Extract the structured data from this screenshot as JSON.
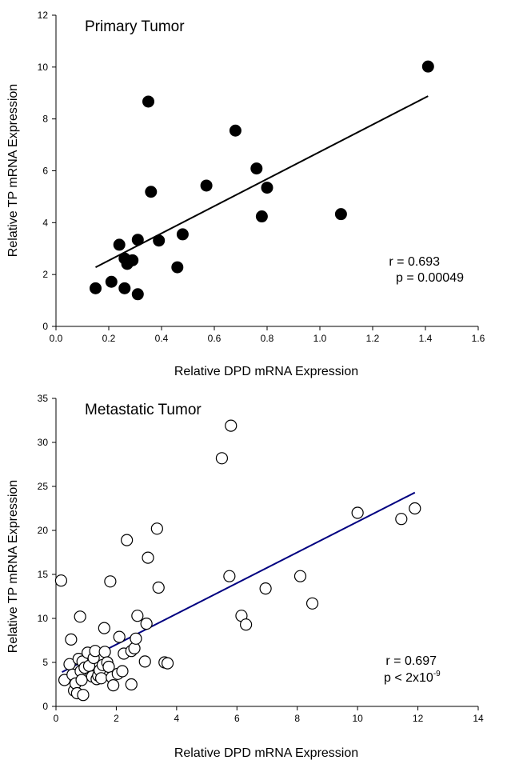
{
  "chart_data": [
    {
      "type": "scatter",
      "title": "Primary Tumor",
      "xlabel": "Relative DPD mRNA Expression",
      "ylabel": "Relative TP mRNA Expression",
      "xlim": [
        0,
        1.6
      ],
      "ylim": [
        0,
        12
      ],
      "xticks": [
        "0.0",
        "0.2",
        "0.4",
        "0.6",
        "0.8",
        "1.0",
        "1.2",
        "1.4",
        "1.6"
      ],
      "yticks": [
        "0",
        "2",
        "4",
        "6",
        "8",
        "10",
        "12"
      ],
      "marker": "filled-circle",
      "marker_color": "#000000",
      "trendline": {
        "x": [
          0.15,
          1.41
        ],
        "y": [
          2.28,
          8.88
        ],
        "color": "#000000"
      },
      "annotations": {
        "r_text": "r = 0.693",
        "p_text": "p = 0.00049",
        "p_superscript": ""
      },
      "points": [
        {
          "x": 0.15,
          "y": 1.47
        },
        {
          "x": 0.21,
          "y": 1.72
        },
        {
          "x": 0.24,
          "y": 3.15
        },
        {
          "x": 0.26,
          "y": 2.62
        },
        {
          "x": 0.26,
          "y": 1.47
        },
        {
          "x": 0.27,
          "y": 2.41
        },
        {
          "x": 0.29,
          "y": 2.55
        },
        {
          "x": 0.31,
          "y": 3.34
        },
        {
          "x": 0.31,
          "y": 1.24
        },
        {
          "x": 0.35,
          "y": 8.67
        },
        {
          "x": 0.36,
          "y": 5.19
        },
        {
          "x": 0.39,
          "y": 3.31
        },
        {
          "x": 0.46,
          "y": 2.28
        },
        {
          "x": 0.48,
          "y": 3.55
        },
        {
          "x": 0.57,
          "y": 5.43
        },
        {
          "x": 0.68,
          "y": 7.55
        },
        {
          "x": 0.76,
          "y": 6.09
        },
        {
          "x": 0.78,
          "y": 4.24
        },
        {
          "x": 0.8,
          "y": 5.35
        },
        {
          "x": 1.08,
          "y": 4.33
        },
        {
          "x": 1.41,
          "y": 10.02
        }
      ]
    },
    {
      "type": "scatter",
      "title": "Metastatic Tumor",
      "xlabel": "Relative DPD mRNA Expression",
      "ylabel": "Relative TP mRNA Expression",
      "xlim": [
        0,
        14
      ],
      "ylim": [
        0,
        35
      ],
      "xticks": [
        "0",
        "2",
        "4",
        "6",
        "8",
        "10",
        "12",
        "14"
      ],
      "yticks": [
        "0",
        "5",
        "10",
        "15",
        "20",
        "25",
        "30",
        "35"
      ],
      "marker": "open-circle",
      "marker_color": "#000000",
      "trendline": {
        "x": [
          0.2,
          11.9
        ],
        "y": [
          3.9,
          24.3
        ],
        "color": "#000080"
      },
      "annotations": {
        "r_text": "r = 0.697",
        "p_text": "p < 2x10",
        "p_superscript": "-9"
      },
      "points": [
        {
          "x": 0.17,
          "y": 14.3
        },
        {
          "x": 0.28,
          "y": 3.0
        },
        {
          "x": 0.45,
          "y": 4.8
        },
        {
          "x": 0.5,
          "y": 7.6
        },
        {
          "x": 0.55,
          "y": 3.6
        },
        {
          "x": 0.6,
          "y": 1.8
        },
        {
          "x": 0.65,
          "y": 2.6
        },
        {
          "x": 0.7,
          "y": 1.5
        },
        {
          "x": 0.75,
          "y": 5.4
        },
        {
          "x": 0.8,
          "y": 10.2
        },
        {
          "x": 0.82,
          "y": 4.0
        },
        {
          "x": 0.85,
          "y": 3.0
        },
        {
          "x": 0.88,
          "y": 5.1
        },
        {
          "x": 0.9,
          "y": 1.3
        },
        {
          "x": 0.95,
          "y": 4.4
        },
        {
          "x": 1.05,
          "y": 6.1
        },
        {
          "x": 1.1,
          "y": 4.6
        },
        {
          "x": 1.2,
          "y": 3.4
        },
        {
          "x": 1.25,
          "y": 5.5
        },
        {
          "x": 1.3,
          "y": 6.3
        },
        {
          "x": 1.35,
          "y": 3.1
        },
        {
          "x": 1.4,
          "y": 3.5
        },
        {
          "x": 1.45,
          "y": 4.1
        },
        {
          "x": 1.5,
          "y": 3.2
        },
        {
          "x": 1.55,
          "y": 4.7
        },
        {
          "x": 1.6,
          "y": 8.9
        },
        {
          "x": 1.62,
          "y": 6.2
        },
        {
          "x": 1.7,
          "y": 5.0
        },
        {
          "x": 1.75,
          "y": 4.5
        },
        {
          "x": 1.8,
          "y": 14.2
        },
        {
          "x": 1.85,
          "y": 3.3
        },
        {
          "x": 1.9,
          "y": 2.4
        },
        {
          "x": 2.05,
          "y": 3.7
        },
        {
          "x": 2.1,
          "y": 7.9
        },
        {
          "x": 2.2,
          "y": 4.0
        },
        {
          "x": 2.25,
          "y": 6.0
        },
        {
          "x": 2.35,
          "y": 18.9
        },
        {
          "x": 2.5,
          "y": 6.3
        },
        {
          "x": 2.5,
          "y": 2.5
        },
        {
          "x": 2.6,
          "y": 6.6
        },
        {
          "x": 2.65,
          "y": 7.7
        },
        {
          "x": 2.7,
          "y": 10.3
        },
        {
          "x": 2.95,
          "y": 5.1
        },
        {
          "x": 3.0,
          "y": 9.4
        },
        {
          "x": 3.05,
          "y": 16.9
        },
        {
          "x": 3.35,
          "y": 20.2
        },
        {
          "x": 3.4,
          "y": 13.5
        },
        {
          "x": 3.6,
          "y": 5.0
        },
        {
          "x": 3.7,
          "y": 4.9
        },
        {
          "x": 5.5,
          "y": 28.2
        },
        {
          "x": 5.75,
          "y": 14.8
        },
        {
          "x": 5.8,
          "y": 31.9
        },
        {
          "x": 6.15,
          "y": 10.3
        },
        {
          "x": 6.3,
          "y": 9.3
        },
        {
          "x": 6.95,
          "y": 13.4
        },
        {
          "x": 8.1,
          "y": 14.8
        },
        {
          "x": 8.5,
          "y": 11.7
        },
        {
          "x": 10.0,
          "y": 22.0
        },
        {
          "x": 11.45,
          "y": 21.3
        },
        {
          "x": 11.9,
          "y": 22.5
        }
      ]
    }
  ]
}
